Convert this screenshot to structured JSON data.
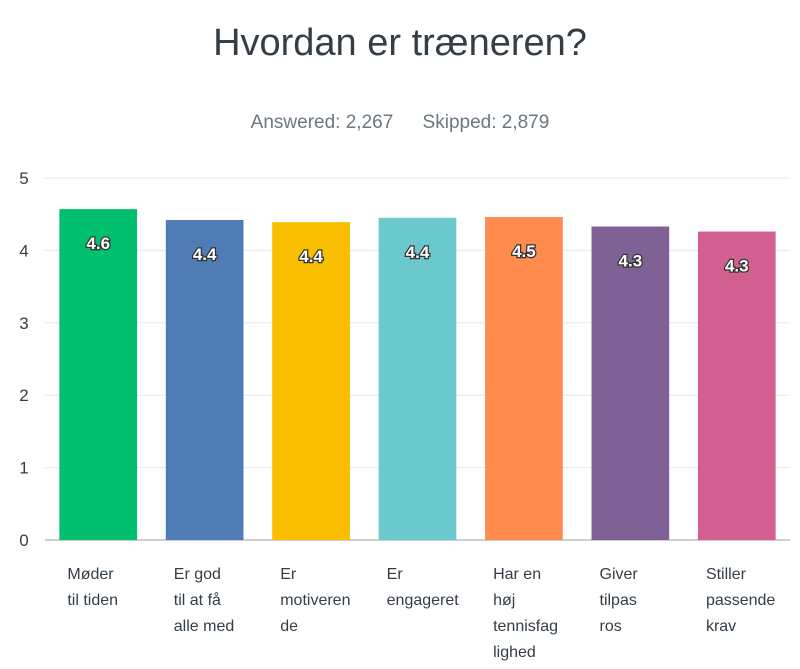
{
  "header": {
    "title": "Hvordan er træneren?",
    "answered": "Answered: 2,267",
    "skipped": "Skipped: 2,879"
  },
  "chart_data": {
    "type": "bar",
    "title": "Hvordan er træneren?",
    "categories": [
      [
        "Møder",
        "til tiden"
      ],
      [
        "Er god",
        "til at få",
        "alle med"
      ],
      [
        "Er",
        "motiveren",
        "de"
      ],
      [
        "Er",
        "engageret"
      ],
      [
        "Har en",
        "høj",
        "tennisfag",
        "lighed"
      ],
      [
        "Giver",
        "tilpas",
        "ros"
      ],
      [
        "Stiller",
        "passende",
        "krav"
      ]
    ],
    "values": [
      4.57,
      4.42,
      4.39,
      4.45,
      4.46,
      4.33,
      4.26
    ],
    "data_labels": [
      "4.6",
      "4.4",
      "4.4",
      "4.4",
      "4.5",
      "4.3",
      "4.3"
    ],
    "colors": [
      "#00bf6f",
      "#507cb6",
      "#f9be00",
      "#6bc8cd",
      "#ff8b4f",
      "#7f6195",
      "#d25f90"
    ],
    "ylim": [
      0,
      5
    ],
    "yticks": [
      0,
      1,
      2,
      3,
      4,
      5
    ],
    "grid": true
  }
}
